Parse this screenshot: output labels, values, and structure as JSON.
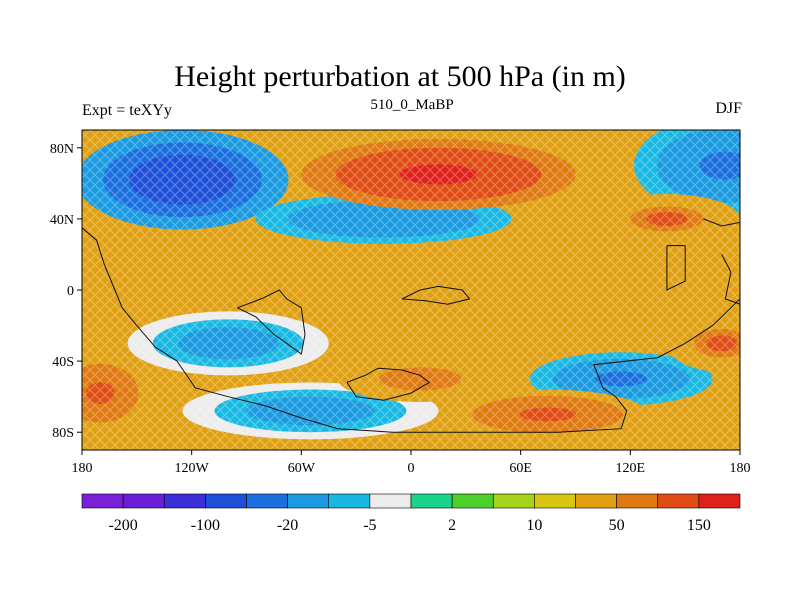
{
  "figure": {
    "title": "Height perturbation at 500 hPa (in m)",
    "left_label": "Expt = teXYy",
    "center_label": "510_0_MaBP",
    "right_label": "DJF"
  },
  "map": {
    "lon_range": [
      -180,
      180
    ],
    "lat_range": [
      -90,
      90
    ],
    "x_ticks": [
      {
        "lon": -180,
        "label": "180"
      },
      {
        "lon": -120,
        "label": "120W"
      },
      {
        "lon": -60,
        "label": "60W"
      },
      {
        "lon": 0,
        "label": "0"
      },
      {
        "lon": 60,
        "label": "60E"
      },
      {
        "lon": 120,
        "label": "120E"
      },
      {
        "lon": 180,
        "label": "180"
      }
    ],
    "y_ticks": [
      {
        "lat": 80,
        "label": "80N"
      },
      {
        "lat": 40,
        "label": "40N"
      },
      {
        "lat": 0,
        "label": "0"
      },
      {
        "lat": -40,
        "label": "40S"
      },
      {
        "lat": -80,
        "label": "80S"
      }
    ],
    "background_level": 10,
    "anomalies": [
      {
        "name": "low-northwest",
        "lon": -125,
        "lat": 62,
        "rlon": 58,
        "rlat": 28,
        "level": -150
      },
      {
        "name": "low-north-central",
        "lon": -15,
        "lat": 40,
        "rlon": 70,
        "rlat": 14,
        "level": -60
      },
      {
        "name": "low-northeast",
        "lon": 172,
        "lat": 70,
        "rlon": 50,
        "rlat": 28,
        "level": -80
      },
      {
        "name": "low-south-west",
        "lon": -100,
        "lat": -30,
        "rlon": 55,
        "rlat": 18,
        "level": -40
      },
      {
        "name": "low-southern-band",
        "lon": -55,
        "lat": -68,
        "rlon": 70,
        "rlat": 16,
        "level": -30
      },
      {
        "name": "low-south-east",
        "lon": 115,
        "lat": -50,
        "rlon": 50,
        "rlat": 15,
        "level": -70
      },
      {
        "name": "high-north-central",
        "lon": 15,
        "lat": 65,
        "rlon": 75,
        "rlat": 20,
        "level": 120
      },
      {
        "name": "high-northeast",
        "lon": 140,
        "lat": 40,
        "rlon": 40,
        "rlat": 14,
        "level": 50
      },
      {
        "name": "high-southwest",
        "lon": -170,
        "lat": -58,
        "rlon": 28,
        "rlat": 22,
        "level": 60
      },
      {
        "name": "high-south-central",
        "lon": 5,
        "lat": -50,
        "rlon": 45,
        "rlat": 13,
        "level": 40
      },
      {
        "name": "high-south-east",
        "lon": 75,
        "lat": -70,
        "rlon": 55,
        "rlat": 14,
        "level": 60
      },
      {
        "name": "high-east",
        "lon": 170,
        "lat": -30,
        "rlon": 30,
        "rlat": 16,
        "level": 50
      }
    ],
    "coastlines": [
      [
        [
          -180,
          35
        ],
        [
          -172,
          28
        ],
        [
          -168,
          15
        ],
        [
          -162,
          0
        ],
        [
          -158,
          -10
        ],
        [
          -150,
          -20
        ],
        [
          -140,
          -32
        ],
        [
          -128,
          -40
        ],
        [
          -118,
          -55
        ],
        [
          -100,
          -60
        ],
        [
          -80,
          -65
        ],
        [
          -60,
          -72
        ],
        [
          -40,
          -78
        ],
        [
          -10,
          -80
        ],
        [
          40,
          -80
        ],
        [
          80,
          -80
        ],
        [
          115,
          -78
        ],
        [
          118,
          -68
        ],
        [
          112,
          -60
        ],
        [
          105,
          -55
        ],
        [
          100,
          -42
        ],
        [
          118,
          -40
        ],
        [
          135,
          -38
        ],
        [
          150,
          -30
        ],
        [
          165,
          -20
        ],
        [
          175,
          -10
        ],
        [
          180,
          -5
        ]
      ],
      [
        [
          -95,
          -10
        ],
        [
          -85,
          -15
        ],
        [
          -75,
          -25
        ],
        [
          -68,
          -30
        ],
        [
          -60,
          -36
        ],
        [
          -58,
          -25
        ],
        [
          -60,
          -10
        ],
        [
          -68,
          -5
        ],
        [
          -72,
          0
        ],
        [
          -82,
          -5
        ],
        [
          -95,
          -10
        ]
      ],
      [
        [
          -35,
          -52
        ],
        [
          -25,
          -48
        ],
        [
          -18,
          -44
        ],
        [
          -5,
          -45
        ],
        [
          5,
          -48
        ],
        [
          10,
          -52
        ],
        [
          0,
          -58
        ],
        [
          -15,
          -62
        ],
        [
          -30,
          -60
        ],
        [
          -35,
          -52
        ]
      ],
      [
        [
          -5,
          -5
        ],
        [
          5,
          0
        ],
        [
          15,
          2
        ],
        [
          28,
          0
        ],
        [
          32,
          -5
        ],
        [
          20,
          -8
        ],
        [
          8,
          -6
        ],
        [
          -5,
          -5
        ]
      ],
      [
        [
          140,
          25
        ],
        [
          150,
          25
        ],
        [
          150,
          5
        ],
        [
          140,
          0
        ],
        [
          140,
          25
        ]
      ],
      [
        [
          160,
          40
        ],
        [
          170,
          36
        ],
        [
          180,
          38
        ]
      ],
      [
        [
          170,
          20
        ],
        [
          175,
          10
        ],
        [
          172,
          -5
        ],
        [
          180,
          -8
        ]
      ]
    ]
  },
  "colorbar": {
    "colors": [
      "#7b1fd8",
      "#6a1fd6",
      "#3c2ed8",
      "#1e4fd8",
      "#1a6fe0",
      "#1a9ae0",
      "#19b8e3",
      "#ececec",
      "#19d48a",
      "#4bd12a",
      "#a6d41d",
      "#d8c712",
      "#e0a012",
      "#e07a10",
      "#e04c14",
      "#e0201a"
    ],
    "labels": [
      "-200",
      "-100",
      "-20",
      "-5",
      "2",
      "10",
      "50",
      "150"
    ]
  }
}
